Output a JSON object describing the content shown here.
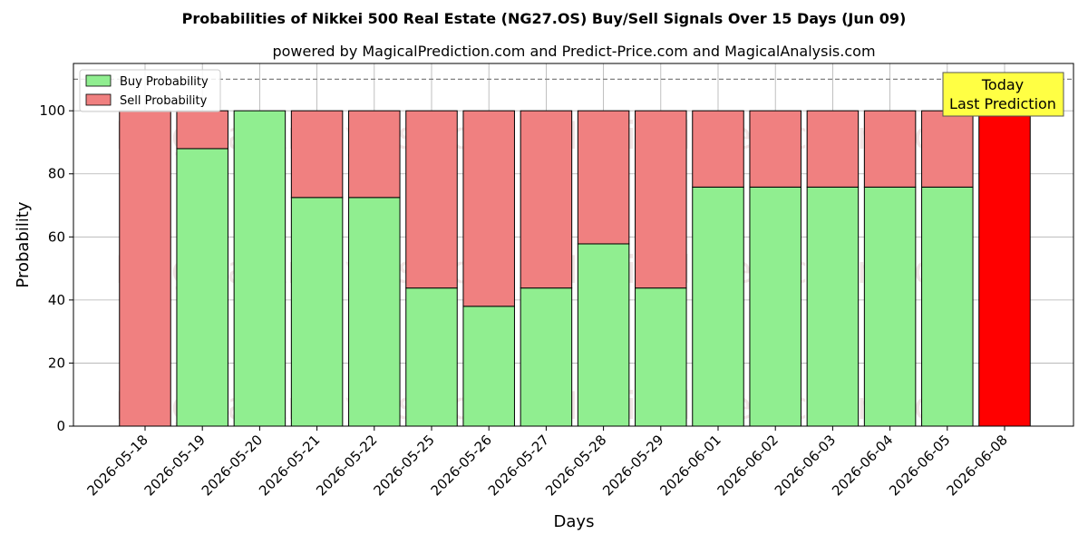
{
  "chart_data": {
    "type": "bar",
    "stacked": true,
    "title": "Probabilities of Nikkei 500 Real Estate (NG27.OS) Buy/Sell Signals Over 15 Days (Jun 09)",
    "subtitle": "powered by MagicalPrediction.com and Predict-Price.com and MagicalAnalysis.com",
    "xlabel": "Days",
    "ylabel": "Probability",
    "ylim": [
      0,
      115
    ],
    "yticks": [
      0,
      20,
      40,
      60,
      80,
      100
    ],
    "reference_line": 110,
    "grid": true,
    "legend_position": "top-left",
    "categories": [
      "2026-05-18",
      "2026-05-19",
      "2026-05-20",
      "2026-05-21",
      "2026-05-22",
      "2026-05-25",
      "2026-05-26",
      "2026-05-27",
      "2026-05-28",
      "2026-05-29",
      "2026-06-01",
      "2026-06-02",
      "2026-06-03",
      "2026-06-04",
      "2026-06-05",
      "2026-06-08"
    ],
    "series": [
      {
        "name": "Buy Probability",
        "color": "#90ee90",
        "values": [
          0,
          88,
          100,
          72.5,
          72.5,
          43.8,
          38,
          43.8,
          57.8,
          43.8,
          75.8,
          75.8,
          75.8,
          75.8,
          75.8,
          0
        ]
      },
      {
        "name": "Sell Probability",
        "color": "#f08080",
        "values": [
          100,
          12,
          0,
          27.5,
          27.5,
          56.2,
          62,
          56.2,
          42.2,
          56.2,
          24.2,
          24.2,
          24.2,
          24.2,
          24.2,
          100
        ]
      }
    ],
    "highlight": {
      "index": 15,
      "color": "#ff0000"
    },
    "annotation": {
      "lines": [
        "Today",
        "Last Prediction"
      ],
      "background": "#ffff44"
    },
    "watermarks": [
      "MagicalAnalysis.com",
      "MagicalPrediction.com"
    ]
  }
}
